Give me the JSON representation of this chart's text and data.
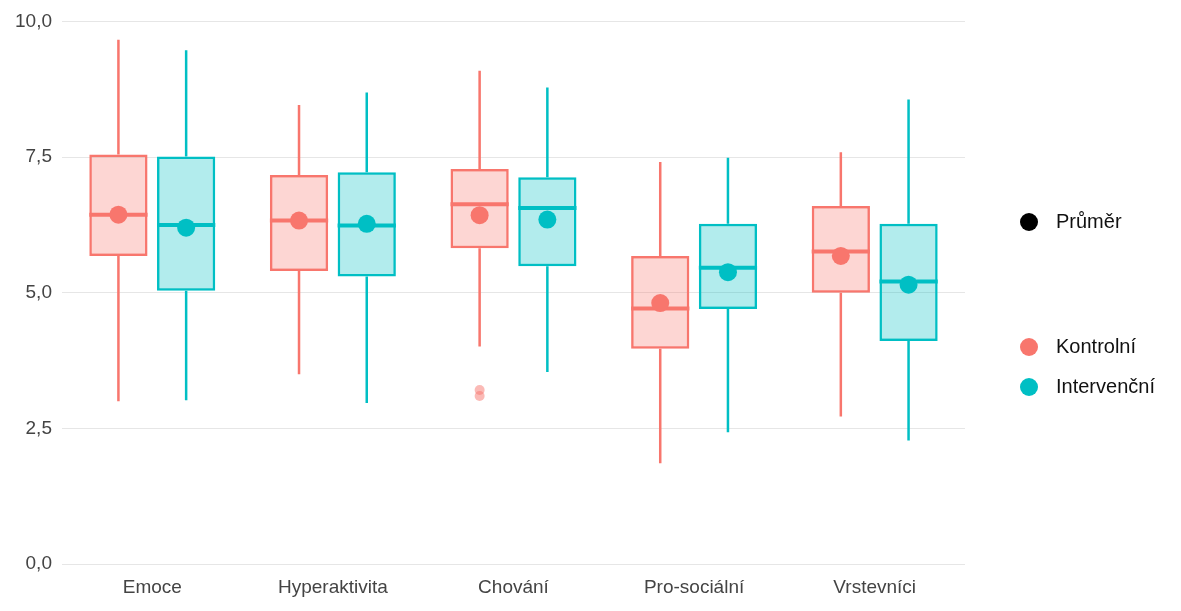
{
  "chart_data": {
    "type": "box",
    "categories": [
      "Emoce",
      "Hyperaktivita",
      "Chování",
      "Pro-sociální",
      "Vrstevníci"
    ],
    "series": [
      {
        "name": "Kontrolní",
        "color": "#f8766d",
        "boxes": [
          {
            "low": 3.0,
            "q1": 5.68,
            "median": 6.44,
            "q3": 7.55,
            "high": 9.66,
            "mean": 6.44
          },
          {
            "low": 3.5,
            "q1": 5.4,
            "median": 6.33,
            "q3": 7.17,
            "high": 8.46,
            "mean": 6.33
          },
          {
            "low": 4.01,
            "q1": 5.82,
            "median": 6.63,
            "q3": 7.28,
            "high": 9.09,
            "mean": 6.43,
            "outliers": [
              3.21,
              3.1
            ]
          },
          {
            "low": 1.86,
            "q1": 3.97,
            "median": 4.71,
            "q3": 5.68,
            "high": 7.41,
            "mean": 4.81
          },
          {
            "low": 2.72,
            "q1": 5.0,
            "median": 5.76,
            "q3": 6.6,
            "high": 7.59,
            "mean": 5.68
          }
        ]
      },
      {
        "name": "Intervenční",
        "color": "#00bfc4",
        "boxes": [
          {
            "low": 3.02,
            "q1": 5.04,
            "median": 6.25,
            "q3": 7.51,
            "high": 9.47,
            "mean": 6.2
          },
          {
            "low": 2.97,
            "q1": 5.3,
            "median": 6.24,
            "q3": 7.22,
            "high": 8.69,
            "mean": 6.27
          },
          {
            "low": 3.54,
            "q1": 5.49,
            "median": 6.56,
            "q3": 7.13,
            "high": 8.78,
            "mean": 6.35
          },
          {
            "low": 2.43,
            "q1": 4.7,
            "median": 5.46,
            "q3": 6.27,
            "high": 7.49,
            "mean": 5.38
          },
          {
            "low": 2.28,
            "q1": 4.11,
            "median": 5.21,
            "q3": 6.27,
            "high": 8.56,
            "mean": 5.15
          }
        ]
      }
    ],
    "ylim": [
      0,
      10
    ],
    "yticks": [
      {
        "value": 0,
        "label": "0,0"
      },
      {
        "value": 2.5,
        "label": "2,5"
      },
      {
        "value": 5,
        "label": "5,0"
      },
      {
        "value": 7.5,
        "label": "7,5"
      },
      {
        "value": 10,
        "label": "10,0"
      }
    ],
    "grid": "y",
    "legend": "right",
    "annotations": [
      "Průměr"
    ]
  }
}
